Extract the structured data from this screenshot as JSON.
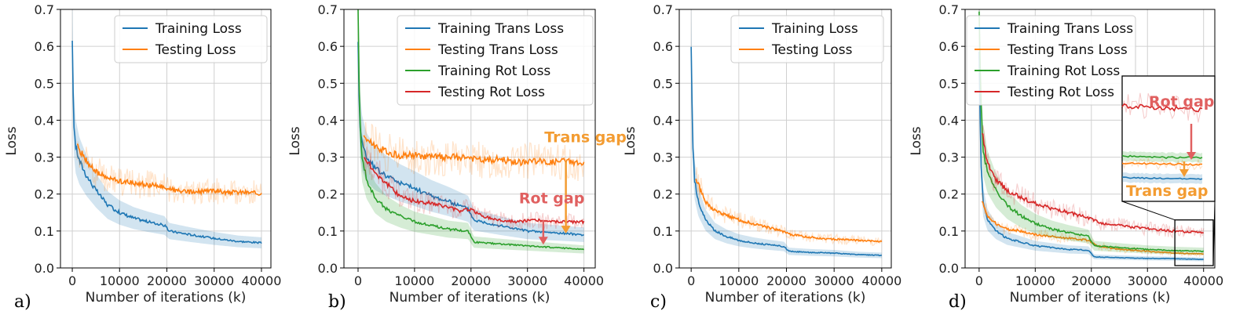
{
  "colors": {
    "training": "#1f77b4",
    "testing": "#ff7f0e",
    "training_rot": "#2ca02c",
    "testing_rot": "#d62728",
    "trans_gap": "#f39c32",
    "rot_gap": "#e06060"
  },
  "chart_data": [
    {
      "type": "line",
      "panel_label": "a)",
      "xlabel": "Number of iterations (k)",
      "ylabel": "Loss",
      "xlim": [
        -2500,
        42000
      ],
      "ylim": [
        0.0,
        0.7
      ],
      "xticks": [
        "0",
        "10000",
        "20000",
        "30000",
        "40000"
      ],
      "yticks": [
        "0.0",
        "0.1",
        "0.2",
        "0.3",
        "0.4",
        "0.5",
        "0.6",
        "0.7"
      ],
      "grid": true,
      "legend_position": "top-right",
      "series": [
        {
          "name": "Training Loss",
          "color": "#1f77b4",
          "x": [
            0,
            300,
            700,
            1500,
            3000,
            5000,
            7500,
            10000,
            13000,
            16000,
            19500,
            20500,
            25000,
            30000,
            35000,
            40000
          ],
          "y": [
            0.6,
            0.4,
            0.33,
            0.29,
            0.25,
            0.21,
            0.17,
            0.15,
            0.135,
            0.125,
            0.115,
            0.1,
            0.09,
            0.08,
            0.072,
            0.068
          ]
        },
        {
          "name": "Testing Loss",
          "color": "#ff7f0e",
          "x": [
            1000,
            2000,
            3000,
            4000,
            5000,
            7000,
            10000,
            13000,
            16000,
            19000,
            21000,
            24000,
            27000,
            30000,
            33000,
            36000,
            40000
          ],
          "y": [
            0.33,
            0.31,
            0.29,
            0.275,
            0.26,
            0.245,
            0.235,
            0.23,
            0.225,
            0.22,
            0.212,
            0.205,
            0.206,
            0.21,
            0.204,
            0.206,
            0.202
          ]
        }
      ]
    },
    {
      "type": "line",
      "panel_label": "b)",
      "xlabel": "Number of iterations (k)",
      "ylabel": "Loss",
      "xlim": [
        -2500,
        42000
      ],
      "ylim": [
        0.0,
        0.7
      ],
      "xticks": [
        "0",
        "10000",
        "20000",
        "30000",
        "40000"
      ],
      "yticks": [
        "0.0",
        "0.1",
        "0.2",
        "0.3",
        "0.4",
        "0.5",
        "0.6",
        "0.7"
      ],
      "grid": true,
      "legend_position": "top-right",
      "series": [
        {
          "name": "Training Trans Loss",
          "color": "#1f77b4",
          "x": [
            0,
            300,
            700,
            1500,
            3000,
            5000,
            7500,
            10000,
            13000,
            16000,
            19500,
            20500,
            25000,
            30000,
            35000,
            40000
          ],
          "y": [
            0.6,
            0.4,
            0.34,
            0.3,
            0.27,
            0.25,
            0.23,
            0.215,
            0.195,
            0.18,
            0.16,
            0.13,
            0.115,
            0.1,
            0.095,
            0.09
          ]
        },
        {
          "name": "Testing Trans Loss",
          "color": "#ff7f0e",
          "x": [
            1000,
            3000,
            5000,
            7000,
            10000,
            13000,
            16000,
            19000,
            22000,
            25000,
            28000,
            31000,
            34000,
            37000,
            40000
          ],
          "y": [
            0.355,
            0.33,
            0.315,
            0.305,
            0.305,
            0.3,
            0.3,
            0.3,
            0.29,
            0.295,
            0.285,
            0.29,
            0.285,
            0.29,
            0.28
          ]
        },
        {
          "name": "Training Rot Loss",
          "color": "#2ca02c",
          "x": [
            0,
            300,
            700,
            1500,
            3000,
            5000,
            7500,
            10000,
            13000,
            16000,
            19500,
            20500,
            25000,
            30000,
            35000,
            40000
          ],
          "y": [
            0.7,
            0.4,
            0.3,
            0.24,
            0.19,
            0.16,
            0.14,
            0.125,
            0.115,
            0.105,
            0.1,
            0.07,
            0.065,
            0.06,
            0.055,
            0.05
          ]
        },
        {
          "name": "Testing Rot Loss",
          "color": "#d62728",
          "x": [
            1000,
            3000,
            5000,
            7000,
            10000,
            13000,
            16000,
            18000,
            20000,
            22000,
            25000,
            28000,
            31000,
            34000,
            37000,
            40000
          ],
          "y": [
            0.3,
            0.26,
            0.23,
            0.2,
            0.18,
            0.175,
            0.165,
            0.155,
            0.16,
            0.14,
            0.13,
            0.125,
            0.13,
            0.125,
            0.125,
            0.125
          ]
        }
      ],
      "annotations": [
        {
          "text": "Trans gap",
          "color": "#f39c32",
          "x": 33000,
          "y": 0.34,
          "arrow": {
            "x": 36800,
            "y_from": 0.29,
            "y_to": 0.093
          }
        },
        {
          "text": "Rot gap",
          "color": "#e06060",
          "x": 28500,
          "y": 0.175,
          "arrow": {
            "x": 32800,
            "y_from": 0.13,
            "y_to": 0.063
          }
        }
      ]
    },
    {
      "type": "line",
      "panel_label": "c)",
      "xlabel": "Number of iterations (k)",
      "ylabel": "Loss",
      "xlim": [
        -2500,
        42000
      ],
      "ylim": [
        0.0,
        0.7
      ],
      "xticks": [
        "0",
        "10000",
        "20000",
        "30000",
        "40000"
      ],
      "yticks": [
        "0.0",
        "0.1",
        "0.2",
        "0.3",
        "0.4",
        "0.5",
        "0.6",
        "0.7"
      ],
      "grid": true,
      "legend_position": "top-right",
      "series": [
        {
          "name": "Training Loss",
          "color": "#1f77b4",
          "x": [
            0,
            300,
            700,
            1500,
            3000,
            5000,
            7500,
            10000,
            13000,
            16000,
            19500,
            20500,
            25000,
            30000,
            35000,
            40000
          ],
          "y": [
            0.59,
            0.35,
            0.24,
            0.18,
            0.13,
            0.1,
            0.085,
            0.075,
            0.068,
            0.063,
            0.058,
            0.045,
            0.042,
            0.04,
            0.036,
            0.034
          ]
        },
        {
          "name": "Testing Loss",
          "color": "#ff7f0e",
          "x": [
            1000,
            2000,
            3000,
            4000,
            6000,
            8000,
            10000,
            13000,
            16000,
            19000,
            21000,
            24000,
            27000,
            30000,
            33000,
            36000,
            40000
          ],
          "y": [
            0.24,
            0.21,
            0.18,
            0.165,
            0.15,
            0.14,
            0.13,
            0.12,
            0.11,
            0.1,
            0.09,
            0.085,
            0.08,
            0.078,
            0.076,
            0.074,
            0.072
          ]
        }
      ]
    },
    {
      "type": "line",
      "panel_label": "d)",
      "xlabel": "Number of iterations (k)",
      "ylabel": "Loss",
      "xlim": [
        -2500,
        42000
      ],
      "ylim": [
        0.0,
        0.7
      ],
      "xticks": [
        "0",
        "10000",
        "20000",
        "30000",
        "40000"
      ],
      "yticks": [
        "0.0",
        "0.1",
        "0.2",
        "0.3",
        "0.4",
        "0.5",
        "0.6",
        "0.7"
      ],
      "grid": true,
      "legend_position": "top-left",
      "series": [
        {
          "name": "Training Trans Loss",
          "color": "#1f77b4",
          "x": [
            0,
            300,
            700,
            1500,
            3000,
            5000,
            7500,
            10000,
            13000,
            16000,
            19500,
            20500,
            25000,
            30000,
            35000,
            40000
          ],
          "y": [
            0.58,
            0.3,
            0.18,
            0.13,
            0.1,
            0.08,
            0.07,
            0.06,
            0.055,
            0.05,
            0.048,
            0.03,
            0.028,
            0.026,
            0.025,
            0.023
          ]
        },
        {
          "name": "Testing Trans Loss",
          "color": "#ff7f0e",
          "x": [
            500,
            1500,
            3000,
            5000,
            7500,
            10000,
            13000,
            16000,
            19500,
            21000,
            25000,
            30000,
            35000,
            40000
          ],
          "y": [
            0.18,
            0.14,
            0.12,
            0.105,
            0.1,
            0.09,
            0.085,
            0.08,
            0.075,
            0.06,
            0.05,
            0.045,
            0.04,
            0.038
          ]
        },
        {
          "name": "Training Rot Loss",
          "color": "#2ca02c",
          "x": [
            0,
            300,
            700,
            1500,
            3000,
            5000,
            7500,
            10000,
            13000,
            16000,
            19500,
            20500,
            25000,
            30000,
            35000,
            40000
          ],
          "y": [
            0.7,
            0.45,
            0.32,
            0.26,
            0.21,
            0.17,
            0.14,
            0.12,
            0.105,
            0.095,
            0.085,
            0.06,
            0.055,
            0.05,
            0.047,
            0.045
          ]
        },
        {
          "name": "Testing Rot Loss",
          "color": "#d62728",
          "x": [
            500,
            1500,
            3000,
            5000,
            7500,
            10000,
            13000,
            16000,
            19500,
            22000,
            25000,
            28000,
            31000,
            34000,
            37000,
            40000
          ],
          "y": [
            0.37,
            0.28,
            0.24,
            0.21,
            0.19,
            0.175,
            0.16,
            0.15,
            0.135,
            0.12,
            0.115,
            0.11,
            0.105,
            0.1,
            0.098,
            0.095
          ]
        }
      ],
      "inset": {
        "xlim": [
          36000,
          40000
        ],
        "ylim": [
          0.0,
          0.13
        ],
        "annotations": [
          {
            "text": "Rot gap",
            "color": "#e06060"
          },
          {
            "text": "Trans gap",
            "color": "#f39c32"
          }
        ]
      }
    }
  ]
}
